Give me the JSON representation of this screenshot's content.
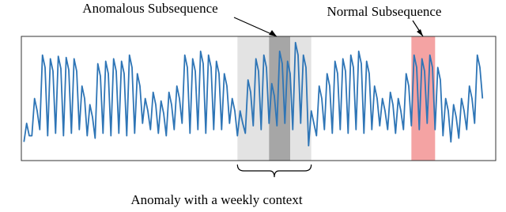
{
  "chart_data": {
    "type": "line",
    "series": [
      {
        "color": "#2e75b6",
        "values": [
          15,
          30,
          20,
          20,
          50,
          40,
          25,
          85,
          75,
          20,
          82,
          72,
          22,
          84,
          74,
          20,
          83,
          73,
          22,
          82,
          72,
          25,
          60,
          50,
          20,
          45,
          35,
          18,
          78,
          68,
          22,
          80,
          70,
          20,
          82,
          72,
          22,
          80,
          70,
          20,
          85,
          75,
          22,
          70,
          60,
          30,
          50,
          40,
          25,
          55,
          45,
          22,
          48,
          38,
          20,
          55,
          45,
          25,
          60,
          50,
          30,
          85,
          75,
          22,
          82,
          72,
          25,
          88,
          78,
          22,
          85,
          75,
          25,
          80,
          70,
          25,
          70,
          60,
          30,
          50,
          40,
          20,
          40,
          30,
          22,
          65,
          55,
          28,
          82,
          72,
          25,
          85,
          75,
          30,
          62,
          52,
          28,
          88,
          78,
          30,
          80,
          70,
          25,
          95,
          85,
          30,
          85,
          75,
          12,
          40,
          30,
          20,
          60,
          50,
          25,
          70,
          60,
          22,
          80,
          70,
          25,
          82,
          72,
          22,
          85,
          75,
          25,
          88,
          78,
          22,
          80,
          70,
          25,
          60,
          50,
          28,
          50,
          40,
          25,
          55,
          45,
          22,
          50,
          40,
          25,
          70,
          60,
          28,
          85,
          75,
          25,
          82,
          72,
          30,
          85,
          75,
          25,
          75,
          65,
          20,
          50,
          40,
          15,
          45,
          35,
          18,
          50,
          40,
          25,
          60,
          50,
          30,
          85,
          75,
          50
        ]
      }
    ],
    "regions": [
      {
        "label": "Anomaly with a weekly context",
        "start": 81,
        "end": 109,
        "color": "#e3e3e3"
      },
      {
        "label": "Anomalous Subsequence",
        "start": 93,
        "end": 101,
        "color": "#a6a6a6"
      },
      {
        "label": "Normal Subsequence",
        "start": 147,
        "end": 156,
        "color": "#f4a3a3"
      }
    ],
    "xlim": [
      -1,
      179
    ],
    "ylim": [
      0,
      100
    ]
  }
}
